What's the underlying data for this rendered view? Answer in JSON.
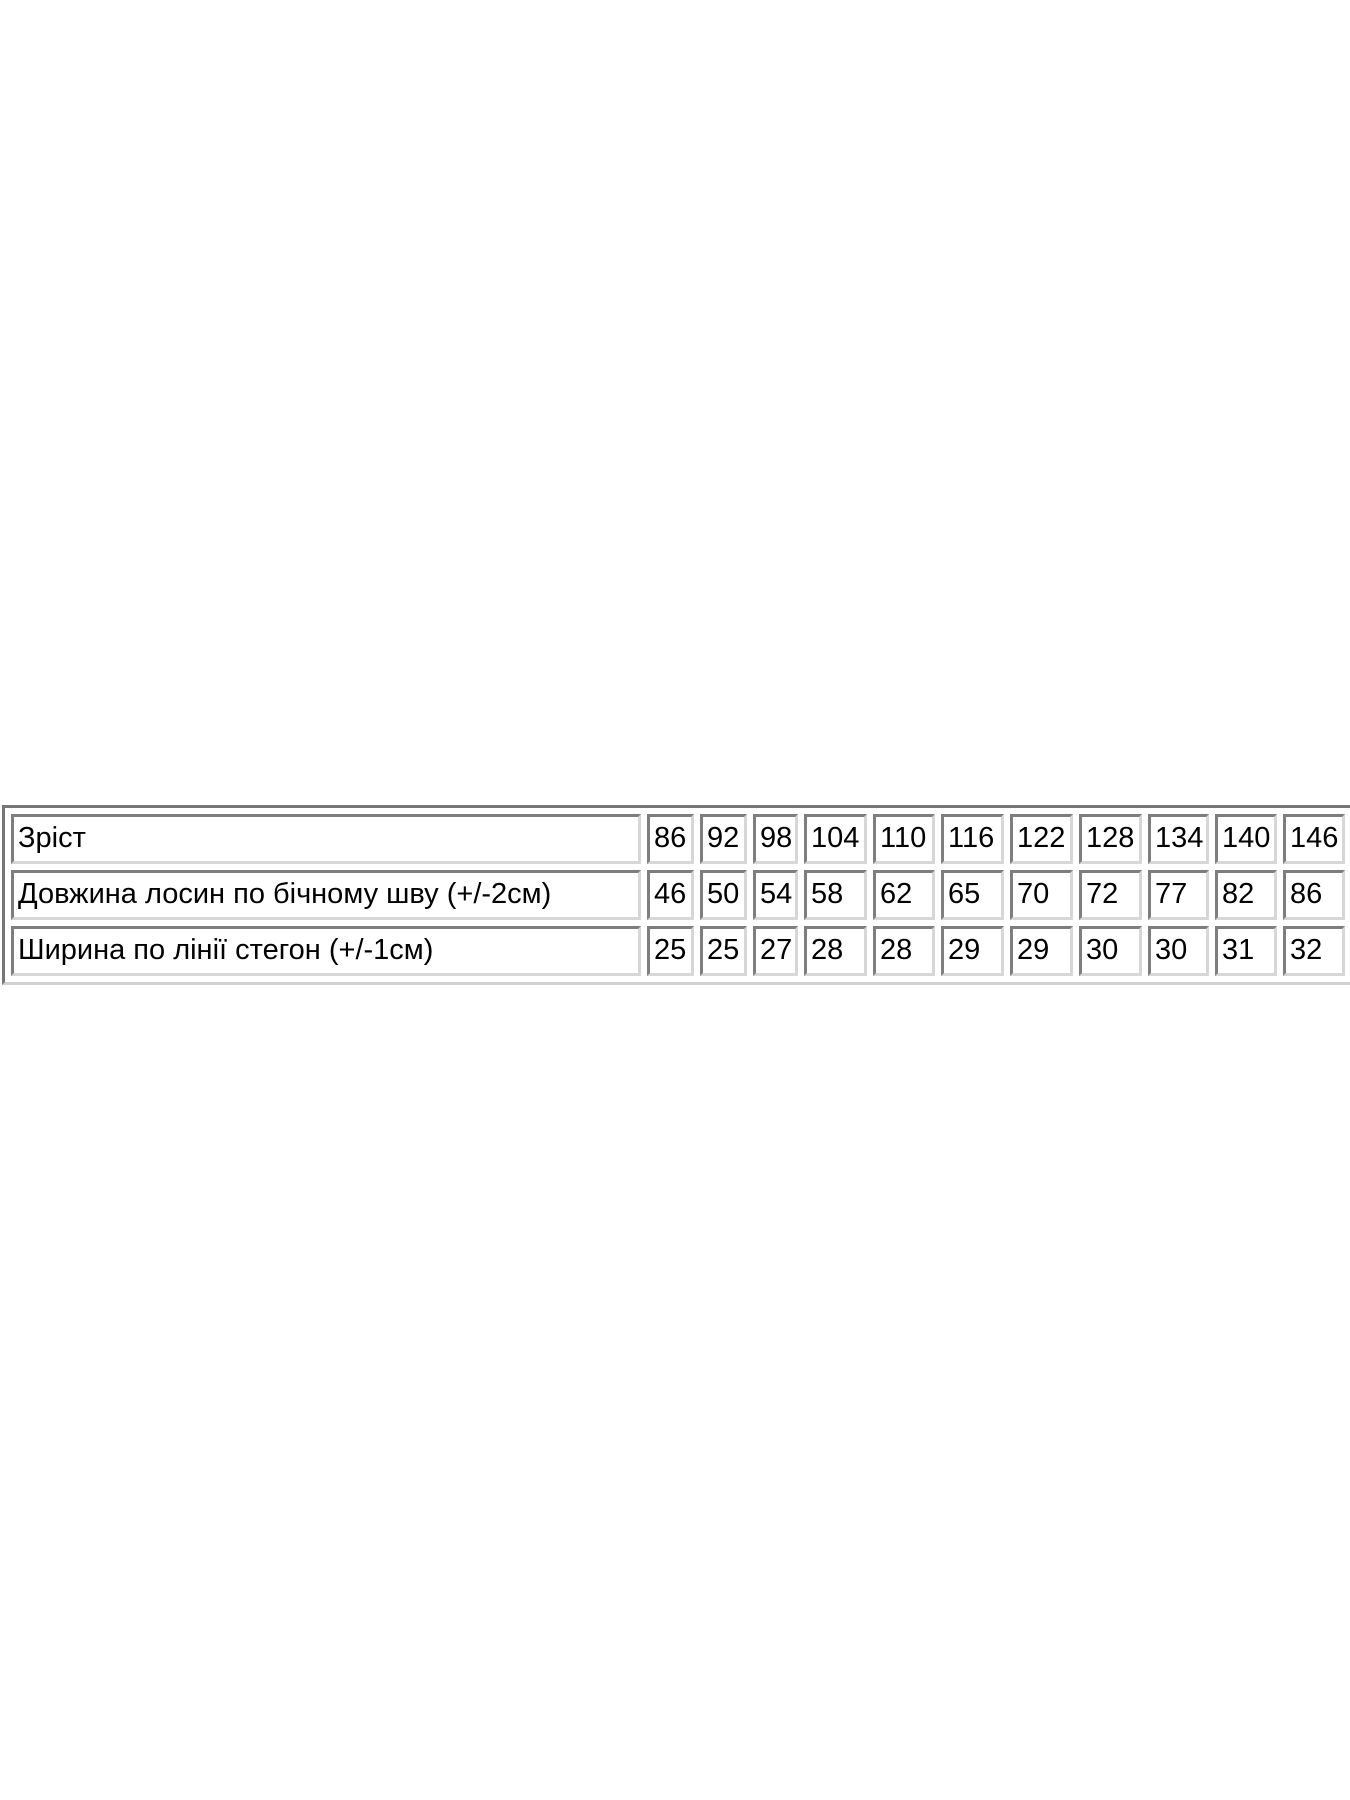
{
  "page": {
    "background": "#ffffff"
  },
  "size_table": {
    "text_color": "#000000",
    "border_dark": "#7e7e7e",
    "border_light": "#d7d7d7",
    "row_count": 3,
    "value_columns": 11
  },
  "chart_data": {
    "type": "table",
    "rows": [
      {
        "label": "Зріст",
        "values": [
          "86",
          "92",
          "98",
          "104",
          "110",
          "116",
          "122",
          "128",
          "134",
          "140",
          "146"
        ]
      },
      {
        "label": "Довжина лосин по бічному шву (+/-2см)",
        "values": [
          "46",
          "50",
          "54",
          "58",
          "62",
          "65",
          "70",
          "72",
          "77",
          "82",
          "86"
        ]
      },
      {
        "label": "Ширина по лінії стегон (+/-1см)",
        "values": [
          "25",
          "25",
          "27",
          "28",
          "28",
          "29",
          "29",
          "30",
          "30",
          "31",
          "32"
        ]
      }
    ]
  }
}
